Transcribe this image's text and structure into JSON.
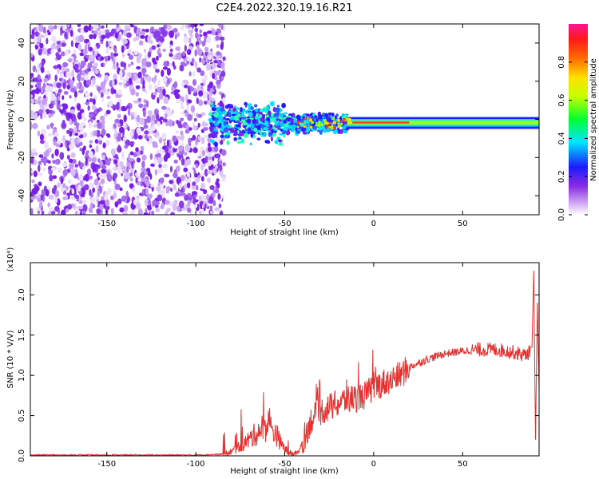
{
  "figure": {
    "title": "C2E4.2022.320.19.16.R21"
  },
  "chart_data": [
    {
      "type": "heatmap",
      "title": "C2E4.2022.320.19.16.R21",
      "xlabel": "Height of straight line (km)",
      "ylabel": "Frequency (Hz)",
      "xlim": [
        -193,
        93
      ],
      "ylim": [
        -50,
        50
      ],
      "xticks": [
        -150,
        -100,
        -50,
        0,
        50
      ],
      "yticks": [
        -40,
        -20,
        0,
        20,
        40
      ],
      "colorbar": {
        "label": "Normalized spectral amplitude",
        "range": [
          0,
          1
        ],
        "ticks": [
          "0.0",
          "0.2",
          "0.4",
          "0.6",
          "0.8"
        ]
      },
      "regions": [
        {
          "x_range": [
            -193,
            -85
          ],
          "freq_range": [
            -50,
            50
          ],
          "amplitude": "low (noise)"
        },
        {
          "x_range": [
            -90,
            -50
          ],
          "freq_range": [
            -15,
            10
          ],
          "amplitude": "medium"
        },
        {
          "x_range": [
            -50,
            -15
          ],
          "freq_range": [
            -6,
            6
          ],
          "amplitude": "medium-high"
        },
        {
          "x_range": [
            -15,
            93
          ],
          "freq_range": [
            -3,
            0
          ],
          "amplitude": "high (peak ~-1.5 Hz)"
        }
      ]
    },
    {
      "type": "line",
      "xlabel": "Height of straight line (km)",
      "ylabel": "SNR (10 * V/V)",
      "y_scale_label": "(x10⁴)",
      "xlim": [
        -193,
        93
      ],
      "ylim": [
        0,
        2.4
      ],
      "xticks": [
        -150,
        -100,
        -50,
        0,
        50
      ],
      "yticks": [
        0.0,
        0.5,
        1.0,
        1.5,
        2.0
      ],
      "series": [
        {
          "color": "#e8302e",
          "x": [
            -193,
            -150,
            -100,
            -85,
            -80,
            -75,
            -70,
            -65,
            -60,
            -55,
            -52,
            -48,
            -45,
            -42,
            -40,
            -35,
            -30,
            -25,
            -20,
            -15,
            -10,
            -5,
            0,
            5,
            10,
            15,
            20,
            25,
            30,
            40,
            50,
            60,
            70,
            80,
            85,
            88,
            89,
            90,
            91,
            92,
            93
          ],
          "y": [
            0.01,
            0.01,
            0.01,
            0.02,
            0.05,
            0.12,
            0.2,
            0.3,
            0.38,
            0.28,
            0.15,
            0.04,
            0.02,
            0.06,
            0.18,
            0.45,
            0.55,
            0.6,
            0.65,
            0.7,
            0.72,
            0.75,
            0.85,
            0.9,
            0.95,
            1.0,
            1.1,
            1.15,
            1.2,
            1.27,
            1.3,
            1.32,
            1.32,
            1.28,
            1.25,
            1.3,
            1.35,
            2.3,
            0.2,
            1.9,
            0.8
          ]
        }
      ]
    }
  ]
}
